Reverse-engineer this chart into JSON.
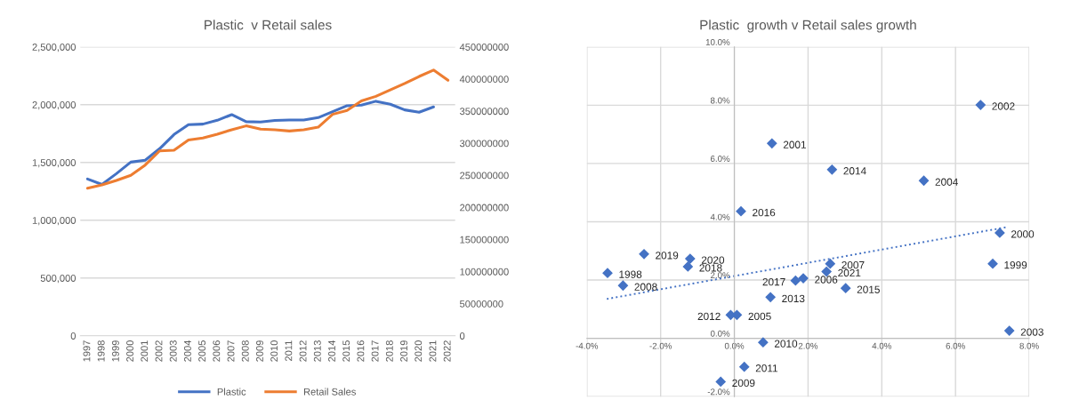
{
  "chart_data": [
    {
      "type": "line",
      "title": "Plastic  v Retail sales",
      "categories": [
        "1997",
        "1998",
        "1999",
        "2000",
        "2001",
        "2002",
        "2003",
        "2004",
        "2005",
        "2006",
        "2007",
        "2008",
        "2009",
        "2010",
        "2011",
        "2012",
        "2013",
        "2014",
        "2015",
        "2016",
        "2017",
        "2018",
        "2019",
        "2020",
        "2021",
        "2022"
      ],
      "series": [
        {
          "name": "Plastic",
          "color": "#4472c4",
          "values": [
            1357000,
            1310000,
            1403000,
            1503000,
            1519000,
            1619000,
            1742000,
            1827000,
            1832000,
            1865000,
            1914000,
            1853000,
            1850000,
            1863000,
            1868000,
            1868000,
            1888000,
            1940000,
            1991000,
            1996000,
            2030000,
            2004000,
            1955000,
            1935000,
            1981000,
            null
          ]
        },
        {
          "name": "Retail Sales",
          "color": "#ed7d31",
          "axis": "y2",
          "values": [
            230000000,
            235000000,
            242000000,
            250000000,
            266000000,
            288000000,
            289000000,
            305000000,
            308000000,
            314000000,
            321000000,
            327000000,
            322000000,
            321000000,
            319000000,
            321000000,
            325000000,
            345000000,
            351000000,
            366000000,
            373000000,
            383000000,
            393000000,
            404000000,
            414000000,
            398000000
          ]
        }
      ],
      "ylim": [
        0,
        2500000
      ],
      "yticks": [
        0,
        {
          "value": 500000,
          "label": "500,000"
        },
        {
          "value": 1000000,
          "label": "1,000,000"
        },
        {
          "value": 1500000,
          "label": "1,500,000"
        },
        {
          "value": 2000000,
          "label": "2,000,000"
        },
        {
          "value": 2500000,
          "label": "2,500,000"
        }
      ],
      "y2lim": [
        0,
        450000000
      ],
      "y2ticks": [
        0,
        50000000,
        100000000,
        150000000,
        200000000,
        250000000,
        300000000,
        350000000,
        400000000,
        450000000
      ],
      "grid": "y",
      "legend": "bottom",
      "marker": "none",
      "line_style": "solid"
    },
    {
      "type": "scatter",
      "title": "Plastic  growth v Retail sales growth",
      "x": [
        -3.44,
        7.01,
        7.2,
        1.02,
        6.68,
        7.46,
        5.14,
        0.07,
        1.87,
        2.6,
        -3.02,
        -0.37,
        0.78,
        0.27,
        -0.1,
        0.98,
        2.65,
        3.02,
        0.18,
        1.66,
        -1.26,
        -2.45,
        -1.2,
        2.5
      ],
      "series": [
        {
          "type": "scatter",
          "color": "#4472c4",
          "marker": "diamond",
          "values": [
            2.24,
            2.56,
            3.62,
            6.69,
            8.01,
            0.26,
            5.41,
            0.8,
            2.06,
            2.56,
            1.81,
            -1.49,
            -0.14,
            -0.98,
            0.8,
            1.41,
            5.79,
            1.72,
            4.36,
            1.98,
            2.46,
            2.89,
            2.73,
            2.29
          ]
        },
        {
          "type": "line",
          "color": "#4472c4",
          "line_style": "dotted",
          "x": [
            -3.46,
            7.41
          ],
          "values": [
            1.35,
            3.82
          ]
        }
      ],
      "annotations": [
        {
          "text": "1998",
          "x": -3.44,
          "y": 2.24
        },
        {
          "text": "1999",
          "x": 7.01,
          "y": 2.56
        },
        {
          "text": "2000",
          "x": 7.2,
          "y": 3.62
        },
        {
          "text": "2001",
          "x": 1.02,
          "y": 6.69
        },
        {
          "text": "2002",
          "x": 6.68,
          "y": 8.01
        },
        {
          "text": "2003",
          "x": 7.46,
          "y": 0.26
        },
        {
          "text": "2004",
          "x": 5.14,
          "y": 5.41
        },
        {
          "text": "2005",
          "x": 0.07,
          "y": 0.8
        },
        {
          "text": "2006",
          "x": 1.87,
          "y": 2.06
        },
        {
          "text": "2007",
          "x": 2.6,
          "y": 2.56
        },
        {
          "text": "2008",
          "x": -3.02,
          "y": 1.81
        },
        {
          "text": "2009",
          "x": -0.37,
          "y": -1.49
        },
        {
          "text": "2010",
          "x": 0.78,
          "y": -0.14
        },
        {
          "text": "2011",
          "x": 0.27,
          "y": -0.98
        },
        {
          "text": "2012",
          "x": -0.1,
          "y": 0.8
        },
        {
          "text": "2013",
          "x": 0.98,
          "y": 1.41
        },
        {
          "text": "2014",
          "x": 2.65,
          "y": 5.79
        },
        {
          "text": "2015",
          "x": 3.02,
          "y": 1.72
        },
        {
          "text": "2016",
          "x": 0.18,
          "y": 4.36
        },
        {
          "text": "2017",
          "x": 1.66,
          "y": 1.98
        },
        {
          "text": "2018",
          "x": -1.26,
          "y": 2.46
        },
        {
          "text": "2019",
          "x": -2.45,
          "y": 2.89
        },
        {
          "text": "2020",
          "x": -1.2,
          "y": 2.73
        },
        {
          "text": "2021",
          "x": 2.5,
          "y": 2.29
        }
      ],
      "xlim": [
        -4,
        8
      ],
      "xticks": [
        {
          "value": -4,
          "label": "-4.0%"
        },
        {
          "value": -2,
          "label": "-2.0%"
        },
        {
          "value": 0,
          "label": "0.0%"
        },
        {
          "value": 2,
          "label": "2.0%"
        },
        {
          "value": 4,
          "label": "4.0%"
        },
        {
          "value": 6,
          "label": "6.0%"
        },
        {
          "value": 8,
          "label": "8.0%"
        }
      ],
      "ylim": [
        -2,
        10
      ],
      "yticks": [
        {
          "value": -2,
          "label": "-2.0%"
        },
        {
          "value": 0,
          "label": "0.0%"
        },
        {
          "value": 2,
          "label": "2.0%"
        },
        {
          "value": 4,
          "label": "4.0%"
        },
        {
          "value": 6,
          "label": "6.0%"
        },
        {
          "value": 8,
          "label": "8.0%"
        },
        {
          "value": 10,
          "label": "10.0%"
        }
      ],
      "grid": true
    }
  ]
}
